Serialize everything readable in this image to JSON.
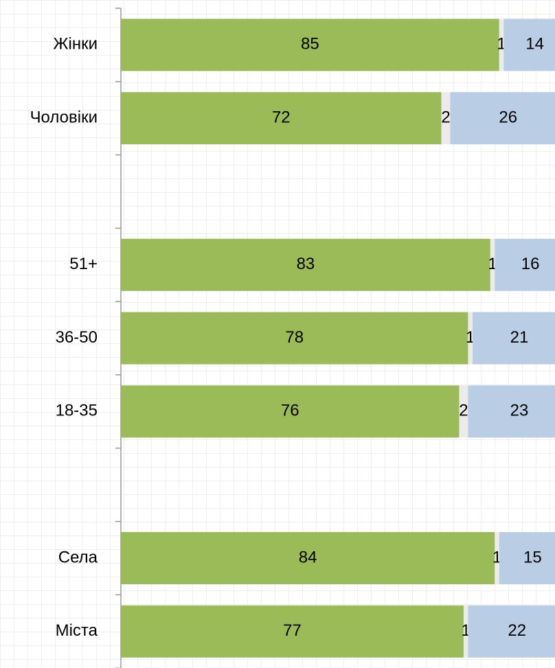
{
  "chart_data": {
    "type": "stacked_bar_horizontal",
    "categories": [
      "Жінки",
      "Чоловіки",
      null,
      "51+",
      "36-50",
      "18-35",
      null,
      "Села",
      "Міста"
    ],
    "series": [
      {
        "color": "#9bbb59",
        "values": [
          85,
          72,
          null,
          83,
          78,
          76,
          null,
          84,
          77
        ]
      },
      {
        "color": "#ebebeb",
        "values": [
          1,
          2,
          null,
          1,
          1,
          2,
          null,
          1,
          1
        ]
      },
      {
        "color": "#b9cde5",
        "values": [
          14,
          26,
          null,
          16,
          21,
          23,
          null,
          15,
          22
        ]
      }
    ],
    "xlim": [
      0,
      100
    ]
  }
}
